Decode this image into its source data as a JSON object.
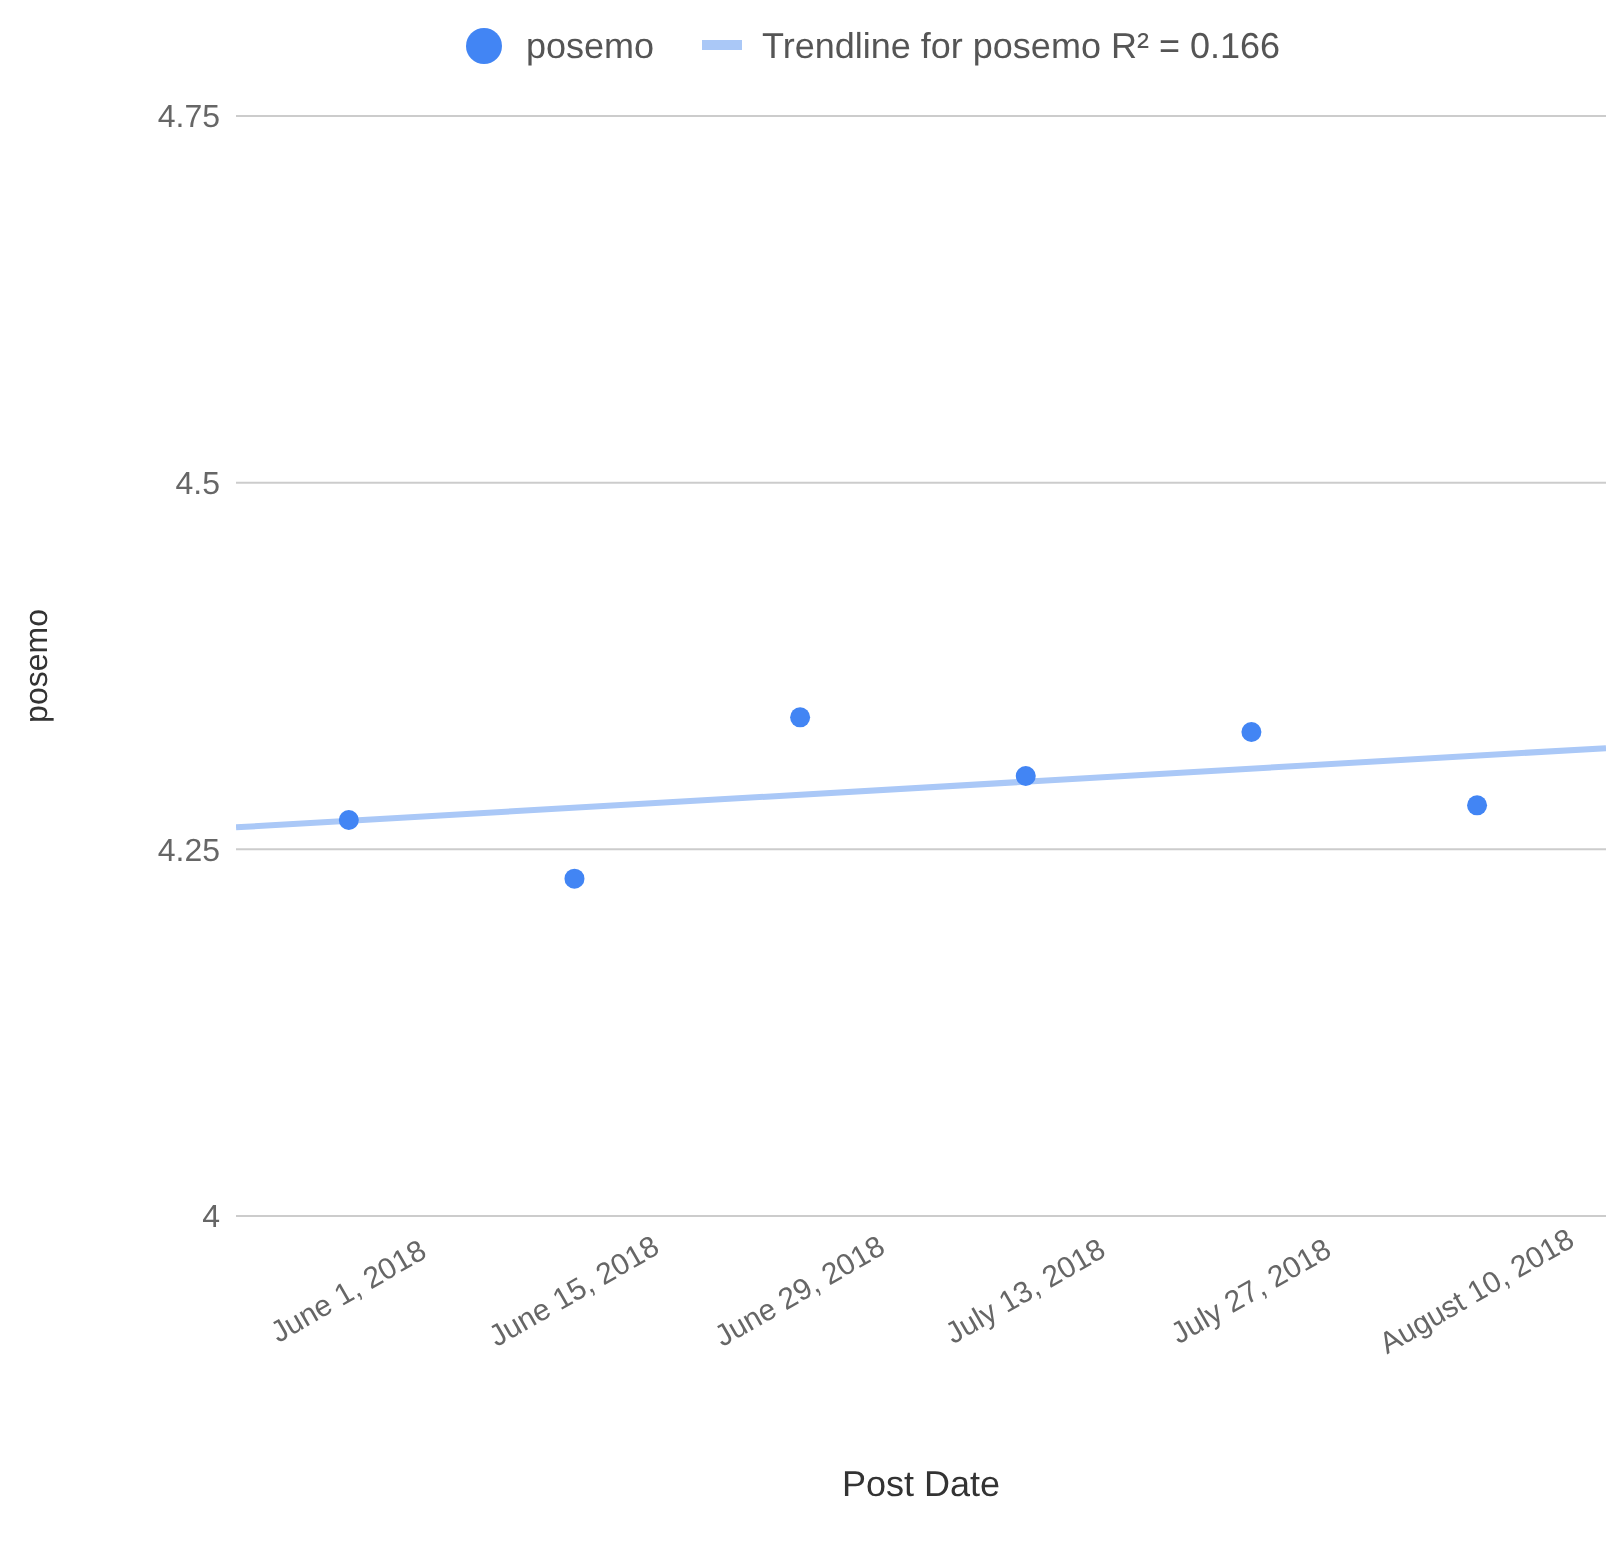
{
  "chart_data": {
    "type": "scatter",
    "xlabel": "Post Date",
    "ylabel": "posemo",
    "x": [
      "2018-06-01",
      "2018-06-15",
      "2018-06-29",
      "2018-07-13",
      "2018-07-27",
      "2018-08-10"
    ],
    "xlim": [
      "2018-05-25",
      "2018-08-18"
    ],
    "xticks": [
      {
        "value": "2018-06-01",
        "label": "June 1, 2018"
      },
      {
        "value": "2018-06-15",
        "label": "June 15, 2018"
      },
      {
        "value": "2018-06-29",
        "label": "June 29, 2018"
      },
      {
        "value": "2018-07-13",
        "label": "July 13, 2018"
      },
      {
        "value": "2018-07-27",
        "label": "July 27, 2018"
      },
      {
        "value": "2018-08-10",
        "label": "August 10, 2018"
      }
    ],
    "ylim": [
      4,
      4.75
    ],
    "yticks": [
      4,
      4.25,
      4.5,
      4.75
    ],
    "grid": "y",
    "legend": "top",
    "marker": "circle",
    "series": [
      {
        "name": "posemo",
        "color": "#4285f4",
        "values": [
          4.27,
          4.23,
          4.34,
          4.3,
          4.33,
          4.28
        ]
      },
      {
        "name": "Trendline for posemo R² = 0.166",
        "type": "line",
        "marker": "none",
        "color": "#aac8f7",
        "x": [
          "2018-05-25",
          "2018-08-18"
        ],
        "values": [
          4.265,
          4.319
        ]
      }
    ]
  }
}
